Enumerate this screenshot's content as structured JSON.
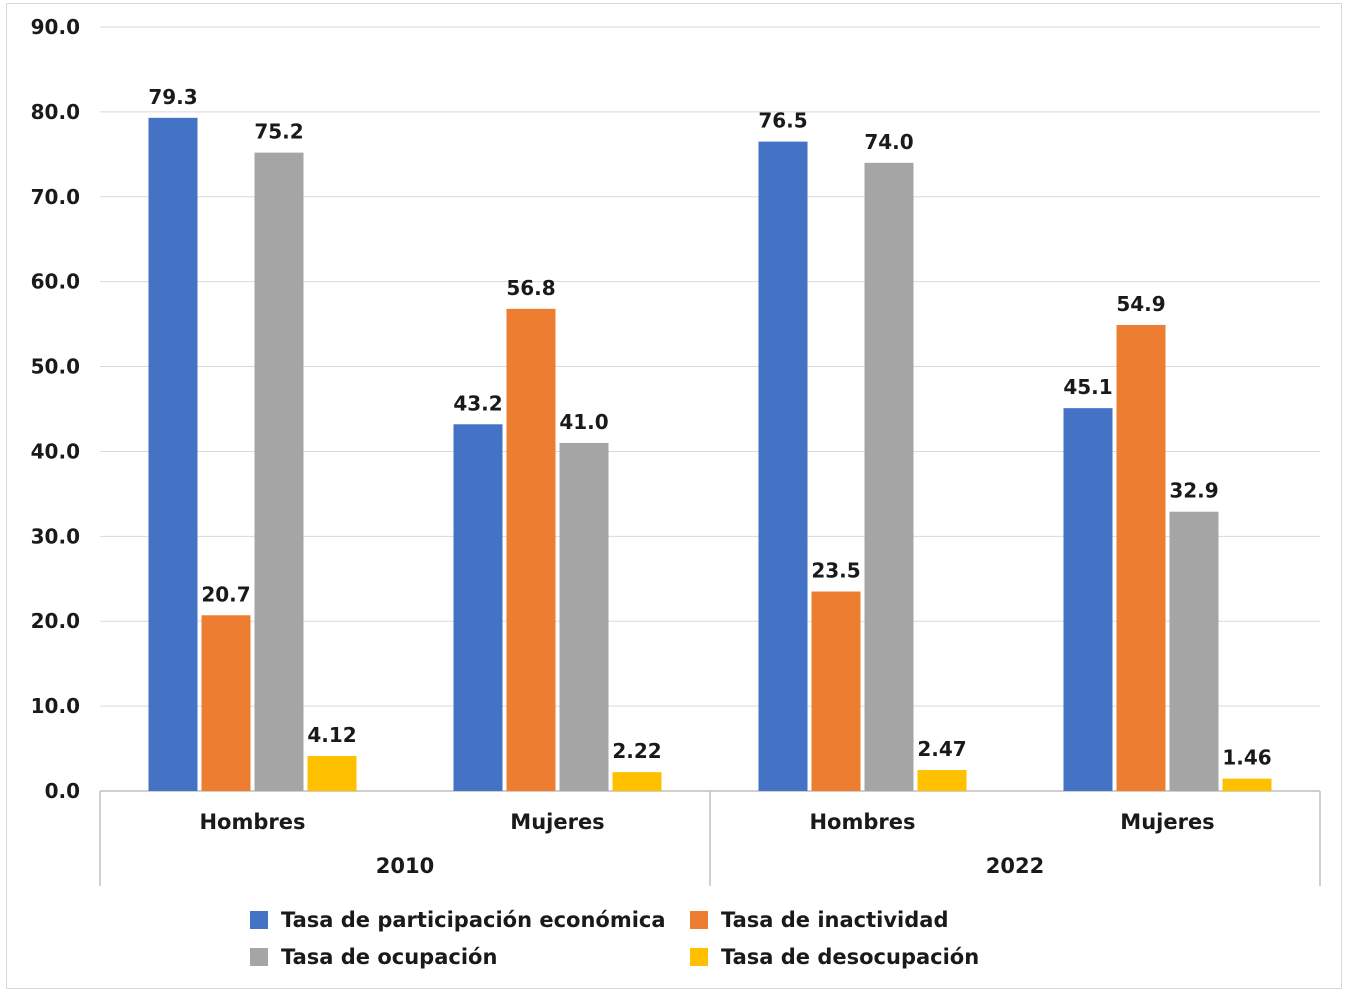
{
  "chart_data": {
    "type": "bar",
    "groups": [
      {
        "label": "2010",
        "categories": [
          "Hombres",
          "Mujeres"
        ]
      },
      {
        "label": "2022",
        "categories": [
          "Hombres",
          "Mujeres"
        ]
      }
    ],
    "series": [
      {
        "name": "Tasa de participación económica",
        "color": "#4472C4",
        "values": [
          79.3,
          43.2,
          76.5,
          45.1
        ],
        "labels": [
          "79.3",
          "43.2",
          "76.5",
          "45.1"
        ]
      },
      {
        "name": "Tasa de inactividad",
        "color": "#ED7D31",
        "values": [
          20.7,
          56.8,
          23.5,
          54.9
        ],
        "labels": [
          "20.7",
          "56.8",
          "23.5",
          "54.9"
        ]
      },
      {
        "name": "Tasa de ocupación",
        "color": "#A5A5A5",
        "values": [
          75.2,
          41.0,
          74.0,
          32.9
        ],
        "labels": [
          "75.2",
          "41.0",
          "74.0",
          "32.9"
        ]
      },
      {
        "name": "Tasa de desocupación",
        "color": "#FFC000",
        "values": [
          4.12,
          2.22,
          2.47,
          1.46
        ],
        "labels": [
          "4.12",
          "2.22",
          "2.47",
          "1.46"
        ]
      }
    ],
    "ylim": [
      0,
      90
    ],
    "yticks": [
      "0.0",
      "10.0",
      "20.0",
      "30.0",
      "40.0",
      "50.0",
      "60.0",
      "70.0",
      "80.0",
      "90.0"
    ],
    "grid": true,
    "legend_position": "bottom"
  }
}
